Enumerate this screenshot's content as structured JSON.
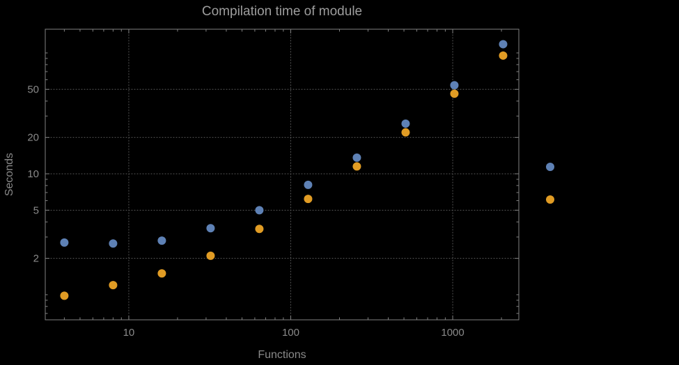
{
  "chart_data": {
    "type": "scatter",
    "title": "Compilation time of module",
    "xlabel": "Functions",
    "ylabel": "Seconds",
    "xscale": "log",
    "yscale": "log",
    "xlim": [
      3.05,
      2560
    ],
    "ylim": [
      0.62,
      157
    ],
    "x_ticks": [
      10,
      100,
      1000
    ],
    "x_tick_labels": [
      "10",
      "100",
      "1000"
    ],
    "y_ticks": [
      2,
      5,
      10,
      20,
      50
    ],
    "y_tick_labels": [
      "2",
      "5",
      "10",
      "20",
      "50"
    ],
    "grid": "dotted lines at labeled ticks",
    "legend_position": "outside-right",
    "x": [
      4,
      8,
      16,
      32,
      64,
      128,
      256,
      512,
      1024,
      2048
    ],
    "series": [
      {
        "name": "blue",
        "color": "#5e81b5",
        "values": [
          2.7,
          2.65,
          2.8,
          3.55,
          5.0,
          8.1,
          13.6,
          26,
          54,
          118
        ]
      },
      {
        "name": "orange",
        "color": "#e19c24",
        "values": [
          0.98,
          1.2,
          1.5,
          2.1,
          3.5,
          6.2,
          11.5,
          22,
          46,
          95
        ]
      }
    ]
  },
  "colors": {
    "background": "#000000",
    "frame": "#828282",
    "grid": "#5c5c5c",
    "tick_text": "#8a8a8a",
    "title_text": "#9d9d9d"
  }
}
